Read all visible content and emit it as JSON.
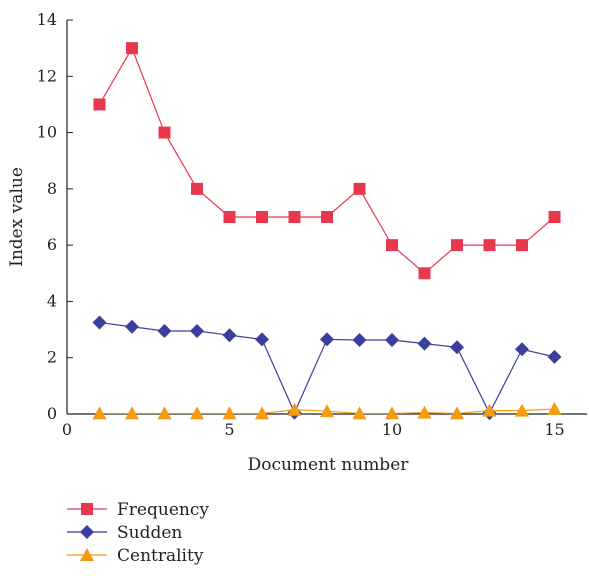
{
  "chart_data": {
    "type": "line",
    "xlabel": "Document number",
    "ylabel": "Index value",
    "xlim": [
      0,
      16
    ],
    "ylim": [
      0,
      14
    ],
    "xticks": [
      0,
      5,
      10,
      15
    ],
    "yticks": [
      0,
      2,
      4,
      6,
      8,
      10,
      12,
      14
    ],
    "grid": false,
    "legend_position": "bottom-left",
    "x": [
      1,
      2,
      3,
      4,
      5,
      6,
      7,
      8,
      9,
      10,
      11,
      12,
      13,
      14,
      15
    ],
    "series": [
      {
        "name": "Frequency",
        "color": "#e8384f",
        "marker": "square",
        "values": [
          11,
          13,
          10,
          8,
          7,
          7,
          7,
          7,
          8,
          6,
          5,
          6,
          6,
          6,
          7
        ]
      },
      {
        "name": "Sudden",
        "color": "#3b3f9c",
        "marker": "diamond",
        "values": [
          3.25,
          3.1,
          2.95,
          2.95,
          2.8,
          2.65,
          0.05,
          2.65,
          2.63,
          2.63,
          2.5,
          2.37,
          0.03,
          2.3,
          2.03
        ]
      },
      {
        "name": "Centrality",
        "color": "#f39c12",
        "marker": "triangle",
        "values": [
          0.02,
          0.02,
          0.02,
          0.02,
          0.02,
          0.02,
          0.15,
          0.1,
          0.02,
          0.02,
          0.05,
          0.02,
          0.12,
          0.12,
          0.18
        ]
      }
    ]
  }
}
